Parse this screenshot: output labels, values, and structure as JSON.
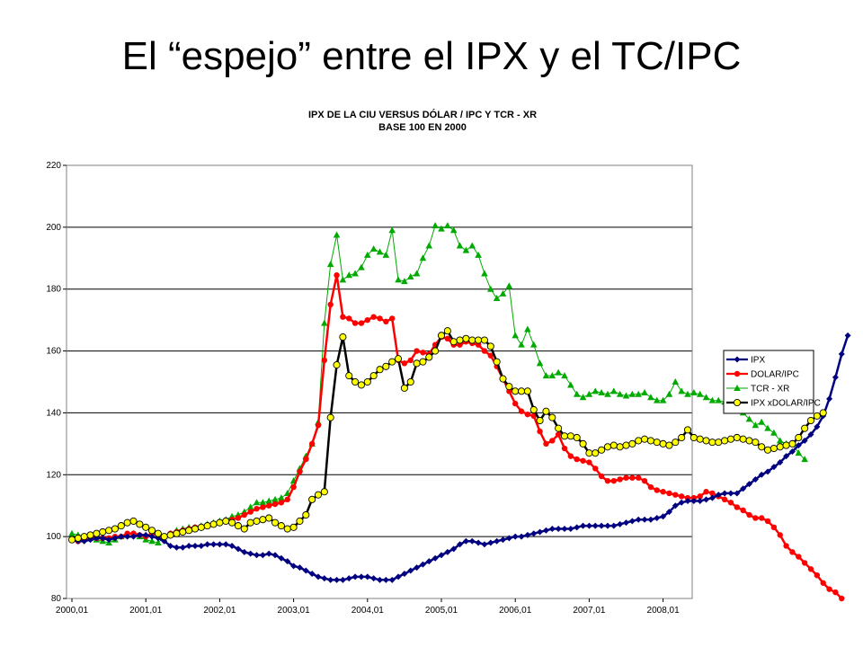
{
  "slide": {
    "title": "El “espejo” entre el IPX y el TC/IPC"
  },
  "chart_data": {
    "type": "line",
    "title": "IPX DE LA CIU VERSUS DÓLAR / IPC Y TCR - XR",
    "subtitle": "BASE 100 EN 2000",
    "xlabel": "",
    "ylabel": "",
    "ylim": [
      80,
      220
    ],
    "yticks": [
      80,
      100,
      120,
      140,
      160,
      180,
      200,
      220
    ],
    "x_ticks": [
      "2000,01",
      "2001,01",
      "2002,01",
      "2003,01",
      "2004,01",
      "2005,01",
      "2006,01",
      "2007,01",
      "2008,01"
    ],
    "x_start": "2000,01",
    "x_frequency": "monthly",
    "grid": "horizontal",
    "legend_position": "right",
    "series": [
      {
        "name": "IPX",
        "color": "#000080",
        "marker": "diamond",
        "values": [
          99,
          98.5,
          98.5,
          99,
          99.5,
          99.5,
          99,
          99.5,
          100,
          100,
          100,
          100.5,
          100.5,
          100,
          99.5,
          98.5,
          97,
          96.5,
          96.5,
          97,
          97,
          97,
          97.5,
          97.5,
          97.5,
          97.5,
          97,
          96,
          95,
          94.5,
          94,
          94,
          94.5,
          94,
          93,
          92,
          90.5,
          90,
          89,
          88,
          87,
          86.5,
          86,
          86,
          86,
          86.5,
          87,
          87,
          87,
          86.5,
          86,
          86,
          86,
          87,
          88,
          89,
          90,
          91,
          92,
          93,
          94,
          95,
          96,
          97.5,
          98.5,
          98.5,
          98,
          97.5,
          98,
          98.5,
          99,
          99.5,
          100,
          100,
          100.5,
          101,
          101.5,
          102,
          102.5,
          102.5,
          102.5,
          102.5,
          103,
          103.5,
          103.5,
          103.5,
          103.5,
          103.5,
          103.5,
          104,
          104.5,
          105,
          105.5,
          105.5,
          105.5,
          106,
          106.5,
          108,
          110,
          111,
          111.5,
          111.5,
          111.5,
          112,
          112.5,
          113.5,
          114,
          114,
          114,
          115.5,
          117,
          118.5,
          120,
          121,
          122.5,
          124,
          126,
          127.5,
          129.5,
          131,
          133,
          135.5,
          139,
          144.5,
          151.5,
          159,
          165
        ]
      },
      {
        "name": "DOLAR/IPC",
        "color": "#ff0000",
        "marker": "circle",
        "values": [
          99,
          98.5,
          99,
          99.5,
          99.5,
          99.5,
          99.5,
          100,
          100,
          101,
          101,
          100.5,
          100,
          101,
          100.5,
          100,
          101,
          101.5,
          102,
          102.5,
          103,
          103,
          103.5,
          104,
          104.5,
          105,
          105.5,
          106,
          107,
          108,
          109,
          109.5,
          110,
          110.5,
          111,
          112,
          116,
          121,
          125,
          130,
          136,
          157,
          175,
          184.5,
          171,
          170.5,
          169,
          169,
          170,
          171,
          170.5,
          169.5,
          170.5,
          157,
          156,
          157,
          160,
          159.5,
          159,
          162,
          164.5,
          164,
          162,
          162,
          163,
          162.5,
          162,
          160,
          158.5,
          155,
          151,
          147,
          143,
          140.5,
          139.5,
          139,
          134,
          130,
          131,
          133,
          128.5,
          126,
          125,
          124.5,
          124,
          122,
          119.5,
          118,
          118,
          118.5,
          119,
          119,
          119,
          118,
          116,
          115,
          114.5,
          114,
          113.5,
          113,
          112.5,
          112.5,
          113,
          114.5,
          114,
          113,
          112,
          111,
          109.5,
          108.5,
          107,
          106,
          106,
          105,
          103,
          100.5,
          97,
          95,
          93.5,
          91.5,
          89.5,
          87.5,
          85,
          83,
          82,
          80
        ]
      },
      {
        "name": "TCR - XR",
        "color": "#00aa00",
        "marker": "triangle",
        "values": [
          101,
          100.5,
          100,
          99.5,
          99,
          98.5,
          98,
          99,
          100,
          100.5,
          101,
          100,
          99,
          98.5,
          98,
          100,
          101,
          102,
          102.5,
          103,
          103,
          103.5,
          104,
          104.5,
          105,
          105.5,
          106.5,
          107,
          108,
          109.5,
          111,
          111,
          111.5,
          112,
          112.5,
          114,
          118,
          122,
          126,
          130,
          137,
          169,
          188,
          197.5,
          183,
          184.5,
          185,
          187,
          191,
          193,
          192,
          191,
          199,
          183,
          182.5,
          184,
          185,
          190,
          194,
          200.5,
          199.5,
          200.5,
          199,
          194,
          192.5,
          194,
          191,
          185,
          180,
          177,
          178.5,
          181,
          165,
          162,
          167,
          162,
          156,
          152,
          152,
          153,
          152,
          149,
          146,
          145,
          146,
          147,
          146.5,
          146,
          147,
          146,
          145.5,
          146,
          146,
          146.5,
          145,
          144,
          144,
          146,
          150,
          147,
          146,
          146.5,
          146,
          145,
          144,
          144,
          143.5,
          144,
          142,
          140,
          138,
          136,
          137,
          135,
          133.5,
          131,
          130,
          130,
          127,
          125
        ]
      },
      {
        "name": "IPX xDOLAR/IPC",
        "color": "#000000",
        "marker": "circle-yellow",
        "values": [
          99,
          99.5,
          100,
          100.5,
          101,
          101.5,
          102,
          102.5,
          103.5,
          104.5,
          105,
          104,
          103,
          102,
          101,
          100,
          100.5,
          101,
          101.5,
          102,
          102.5,
          103,
          103.5,
          104,
          104.5,
          105,
          104.5,
          103.5,
          102.5,
          104.5,
          105,
          105.5,
          106,
          104.5,
          103.5,
          102.5,
          103,
          105,
          107,
          112,
          113.5,
          114.5,
          138.5,
          155.5,
          164.5,
          152,
          150,
          149,
          150,
          152,
          154,
          155,
          156.5,
          157.5,
          148,
          150,
          156,
          156.5,
          158,
          160,
          165,
          166.5,
          163,
          163.5,
          164,
          163.5,
          163.5,
          163.5,
          161.5,
          156.5,
          151,
          148.5,
          147,
          147,
          147,
          141,
          137.5,
          140.5,
          138.5,
          135,
          132.5,
          132.5,
          132,
          130,
          127,
          127,
          128,
          129,
          129.5,
          129,
          129.5,
          130,
          131,
          131.5,
          131,
          130.5,
          130,
          129.5,
          130.5,
          132,
          134.5,
          132,
          131.5,
          131,
          130.5,
          130.5,
          131,
          131.5,
          132,
          131.5,
          131,
          130.5,
          129,
          128,
          128.5,
          129,
          129.5,
          130,
          132,
          135,
          137.5,
          139,
          140
        ]
      }
    ]
  }
}
